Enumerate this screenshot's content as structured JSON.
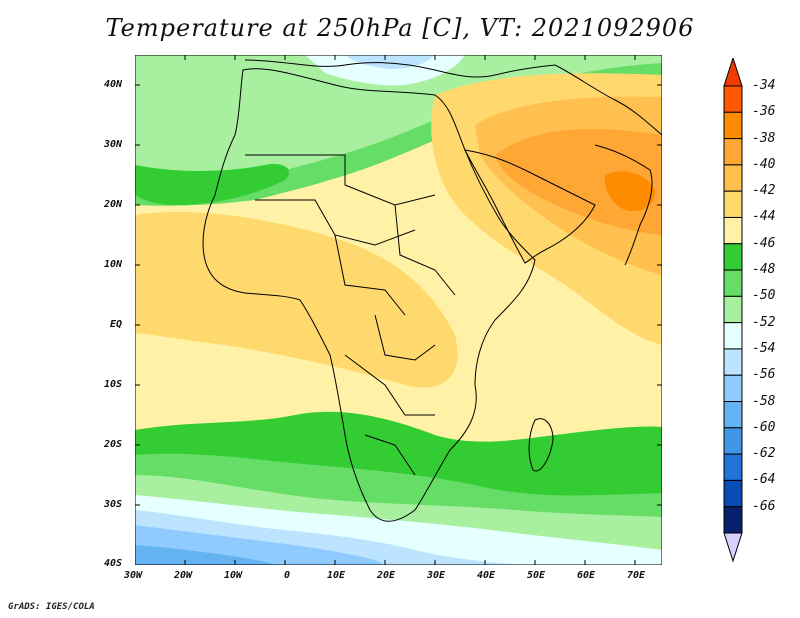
{
  "title": "Temperature at 250hPa [C], VT: 2021092906",
  "footer": "GrADS: IGES/COLA",
  "map": {
    "region": "Africa",
    "lon_range": [
      -30,
      75
    ],
    "lat_range": [
      -40,
      45
    ],
    "lat_labels": [
      "40N",
      "30N",
      "20N",
      "10N",
      "EQ",
      "10S",
      "20S",
      "30S",
      "40S"
    ],
    "lon_labels": [
      "30W",
      "20W",
      "10W",
      "0",
      "10E",
      "20E",
      "30E",
      "40E",
      "50E",
      "60E",
      "70E"
    ]
  },
  "colorbar": {
    "levels": [
      "-34",
      "-36",
      "-38",
      "-40",
      "-42",
      "-44",
      "-46",
      "-48",
      "-50",
      "-52",
      "-54",
      "-56",
      "-58",
      "-60",
      "-62",
      "-64",
      "-66"
    ],
    "colors": [
      "#ff5a00",
      "#ff8c00",
      "#ffa735",
      "#ffc04f",
      "#ffd86e",
      "#fff2a6",
      "#33cc33",
      "#66dd66",
      "#a8f0a0",
      "#e6ffff",
      "#bde4ff",
      "#8fcbff",
      "#65b2f3",
      "#3f96e6",
      "#1f73d9",
      "#0a4bb8",
      "#08206e"
    ],
    "top_triangle_color": "#f03c00",
    "bottom_triangle_color": "#d8d0ff"
  }
}
